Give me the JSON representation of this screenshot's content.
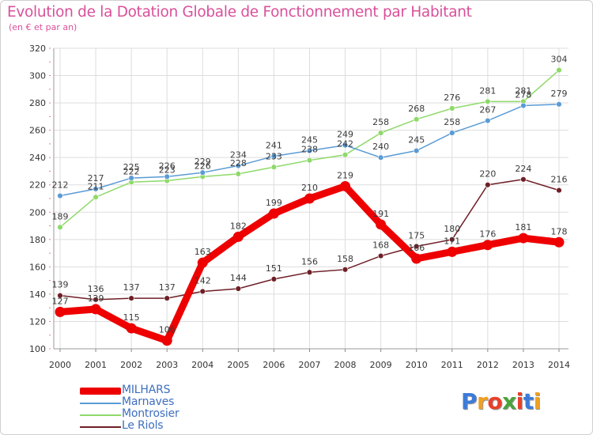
{
  "header": {
    "title": "Evolution de la Dotation Globale de Fonctionnement par Habitant",
    "subtitle": "(en € et par an)"
  },
  "chart_data": {
    "type": "line",
    "title": "Evolution de la Dotation Globale de Fonctionnement par Habitant",
    "subtitle": "(en € et par an)",
    "xlabel": "",
    "ylabel": "",
    "ylim": [
      100,
      320
    ],
    "yticks": [
      100,
      120,
      140,
      160,
      180,
      200,
      220,
      240,
      260,
      280,
      300,
      320
    ],
    "grid": true,
    "legend_position": "bottom-left",
    "categories": [
      "2000",
      "2001",
      "2002",
      "2003",
      "2004",
      "2005",
      "2006",
      "2007",
      "2008",
      "2009",
      "2010",
      "2011",
      "2012",
      "2013",
      "2014"
    ],
    "series": [
      {
        "name": "Le Riols",
        "color": "#6e1f26",
        "values": [
          139,
          136,
          137,
          137,
          142,
          144,
          151,
          156,
          158,
          168,
          175,
          180,
          220,
          224,
          216
        ]
      },
      {
        "name": "Montrosier",
        "color": "#8fd96a",
        "values": [
          189,
          211,
          222,
          223,
          226,
          228,
          233,
          238,
          242,
          258,
          268,
          276,
          281,
          281,
          304
        ]
      },
      {
        "name": "Marnaves",
        "color": "#5b9bd5",
        "values": [
          212,
          217,
          225,
          226,
          229,
          234,
          241,
          245,
          249,
          240,
          245,
          258,
          267,
          278,
          279
        ]
      },
      {
        "name": "MILHARS",
        "color": "#ee0000",
        "values": [
          127,
          129,
          115,
          106,
          163,
          182,
          199,
          210,
          219,
          191,
          166,
          171,
          176,
          181,
          178
        ]
      }
    ]
  },
  "legend": {
    "items": [
      {
        "label": "MILHARS",
        "color": "#ee0000"
      },
      {
        "label": "Marnaves",
        "color": "#5b9bd5"
      },
      {
        "label": "Montrosier",
        "color": "#8fd96a"
      },
      {
        "label": "Le Riols",
        "color": "#6e1f26"
      }
    ]
  },
  "logo": {
    "letters": [
      "P",
      "r",
      "o",
      "x",
      "i",
      "t",
      "i"
    ],
    "colors": [
      "#3d7bd9",
      "#f0a020",
      "#e8402a",
      "#4aa33c",
      "#e8402a",
      "#3d7bd9",
      "#f0a020"
    ]
  }
}
